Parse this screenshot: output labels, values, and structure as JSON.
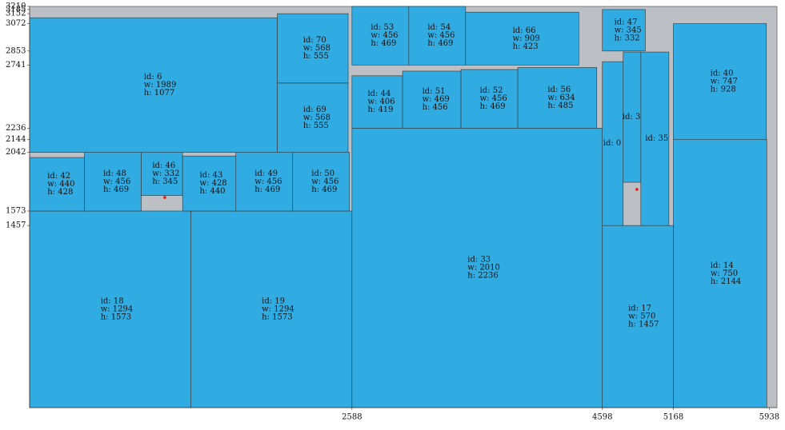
{
  "chart_data": {
    "type": "packing",
    "xlim": [
      0,
      6000
    ],
    "ylim": [
      0,
      3210
    ],
    "xticks": [
      2588,
      4598,
      5168,
      5938
    ],
    "yticks": [
      3210,
      3185,
      3152,
      3072,
      2853,
      2741,
      2236,
      2144,
      2042,
      1573,
      1457
    ],
    "bin_color": "#bcbfc4",
    "item_color": "#31ace2",
    "point_color": "#e0191b",
    "items": [
      {
        "label": [
          "id: 18",
          "w: 1294",
          "h: 1573"
        ],
        "x": 0,
        "y": 0,
        "w": 1294,
        "h": 1573
      },
      {
        "label": [
          "id: 19",
          "w: 1294",
          "h: 1573"
        ],
        "x": 1294,
        "y": 0,
        "w": 1294,
        "h": 1573
      },
      {
        "label": [
          "id: 33",
          "w: 2010",
          "h: 2236"
        ],
        "x": 2588,
        "y": 0,
        "w": 2010,
        "h": 2236
      },
      {
        "label": [
          "id: 17",
          "w: 570",
          "h: 1457"
        ],
        "x": 4598,
        "y": 0,
        "w": 570,
        "h": 1457
      },
      {
        "label": [
          "id: 14",
          "w: 750",
          "h: 2144"
        ],
        "x": 5168,
        "y": 0,
        "w": 750,
        "h": 2144
      },
      {
        "label": [
          "id: 40",
          "w: 747",
          "h: 928"
        ],
        "x": 5168,
        "y": 2144,
        "w": 747,
        "h": 928
      },
      {
        "label": [
          "id: 42",
          "w: 440",
          "h: 428"
        ],
        "x": 0,
        "y": 1573,
        "w": 440,
        "h": 428
      },
      {
        "label": [
          "id: 48",
          "w: 456",
          "h: 469"
        ],
        "x": 440,
        "y": 1573,
        "w": 456,
        "h": 469
      },
      {
        "label": [
          "id: 46",
          "w: 332",
          "h: 345"
        ],
        "x": 896,
        "y": 1697,
        "w": 332,
        "h": 345
      },
      {
        "label": [
          "id: 43",
          "w: 428",
          "h: 440"
        ],
        "x": 1228,
        "y": 1573,
        "w": 428,
        "h": 440
      },
      {
        "label": [
          "id: 49",
          "w: 456",
          "h: 469"
        ],
        "x": 1656,
        "y": 1573,
        "w": 456,
        "h": 469
      },
      {
        "label": [
          "id: 50",
          "w: 456",
          "h: 469"
        ],
        "x": 2112,
        "y": 1573,
        "w": 456,
        "h": 469
      },
      {
        "label": [
          "id: 6",
          "w: 1989",
          "h: 1077"
        ],
        "x": 0,
        "y": 2042,
        "w": 1989,
        "h": 1077
      },
      {
        "label": [
          "id: 69",
          "w: 568",
          "h: 555"
        ],
        "x": 1989,
        "y": 2042,
        "w": 568,
        "h": 555
      },
      {
        "label": [
          "id: 70",
          "w: 568",
          "h: 555"
        ],
        "x": 1989,
        "y": 2597,
        "w": 568,
        "h": 555
      },
      {
        "label": [
          "id: 44",
          "w: 406",
          "h: 419"
        ],
        "x": 2588,
        "y": 2236,
        "w": 406,
        "h": 419
      },
      {
        "label": [
          "id: 51",
          "w: 469",
          "h: 456"
        ],
        "x": 2994,
        "y": 2236,
        "w": 469,
        "h": 456
      },
      {
        "label": [
          "id: 52",
          "w: 456",
          "h: 469"
        ],
        "x": 3463,
        "y": 2236,
        "w": 456,
        "h": 469
      },
      {
        "label": [
          "id: 56",
          "w: 634",
          "h: 485"
        ],
        "x": 3919,
        "y": 2236,
        "w": 634,
        "h": 485
      },
      {
        "label": [
          "id: 53",
          "w: 456",
          "h: 469"
        ],
        "x": 2588,
        "y": 2741,
        "w": 456,
        "h": 469
      },
      {
        "label": [
          "id: 54",
          "w: 456",
          "h: 469"
        ],
        "x": 3044,
        "y": 2741,
        "w": 456,
        "h": 469
      },
      {
        "label": [
          "id: 66",
          "w: 909",
          "h: 423"
        ],
        "x": 3500,
        "y": 2741,
        "w": 909,
        "h": 423
      },
      {
        "label": [
          "id: 47",
          "w: 345",
          "h: 332"
        ],
        "x": 4598,
        "y": 2853,
        "w": 345,
        "h": 332
      },
      {
        "label": [
          "id: 0"
        ],
        "x": 4598,
        "y": 1457,
        "w": 167,
        "h": 1311
      },
      {
        "label": [
          "id: 3"
        ],
        "x": 4765,
        "y": 1803,
        "w": 142,
        "h": 1042
      },
      {
        "label": [
          "id: 35"
        ],
        "x": 4907,
        "y": 1457,
        "w": 225,
        "h": 1388
      }
    ],
    "points": [
      {
        "x": 1085,
        "y": 1682
      },
      {
        "x": 4875,
        "y": 1746
      }
    ]
  }
}
